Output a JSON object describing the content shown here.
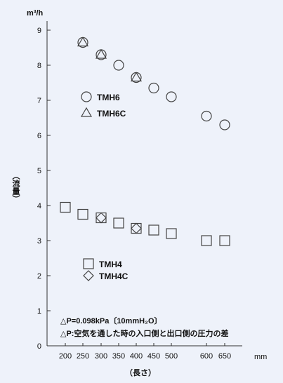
{
  "chart_data": {
    "type": "scatter",
    "y_unit": "m³/h",
    "x_unit": "mm",
    "ylabel": "（流量）",
    "xlabel": "（長さ）",
    "ylim": [
      0,
      9
    ],
    "y_ticks": [
      "0",
      "1",
      "2",
      "3",
      "4",
      "5",
      "6",
      "7",
      "8",
      "9"
    ],
    "x_ticks": [
      "200",
      "250",
      "300",
      "350",
      "400",
      "450",
      "500",
      "600",
      "650"
    ],
    "grid": false,
    "series": [
      {
        "name": "TMH6",
        "marker": "circle",
        "points": [
          {
            "x": "250",
            "y": 8.65
          },
          {
            "x": "300",
            "y": 8.3
          },
          {
            "x": "350",
            "y": 8.0
          },
          {
            "x": "400",
            "y": 7.65
          },
          {
            "x": "450",
            "y": 7.35
          },
          {
            "x": "500",
            "y": 7.1
          },
          {
            "x": "600",
            "y": 6.55
          },
          {
            "x": "650",
            "y": 6.3
          }
        ]
      },
      {
        "name": "TMH6C",
        "marker": "triangle",
        "points": [
          {
            "x": "250",
            "y": 8.65
          },
          {
            "x": "300",
            "y": 8.3
          },
          {
            "x": "400",
            "y": 7.65
          }
        ]
      },
      {
        "name": "TMH4",
        "marker": "square",
        "points": [
          {
            "x": "200",
            "y": 3.95
          },
          {
            "x": "250",
            "y": 3.75
          },
          {
            "x": "300",
            "y": 3.65
          },
          {
            "x": "350",
            "y": 3.5
          },
          {
            "x": "400",
            "y": 3.35
          },
          {
            "x": "450",
            "y": 3.3
          },
          {
            "x": "500",
            "y": 3.2
          },
          {
            "x": "600",
            "y": 3.0
          },
          {
            "x": "650",
            "y": 3.0
          }
        ]
      },
      {
        "name": "TMH4C",
        "marker": "diamond",
        "points": [
          {
            "x": "300",
            "y": 3.65
          },
          {
            "x": "400",
            "y": 3.35
          }
        ]
      }
    ],
    "legend": [
      {
        "marker": "circle",
        "label": "TMH6"
      },
      {
        "marker": "triangle",
        "label": "TMH6C"
      },
      {
        "marker": "square",
        "label": "TMH4"
      },
      {
        "marker": "diamond",
        "label": "TMH4C"
      }
    ],
    "annotations": [
      "△P=0.098kPa〔10mmH₂O〕",
      "△P:空気を通した時の入口側と出口側の圧力の差"
    ]
  }
}
